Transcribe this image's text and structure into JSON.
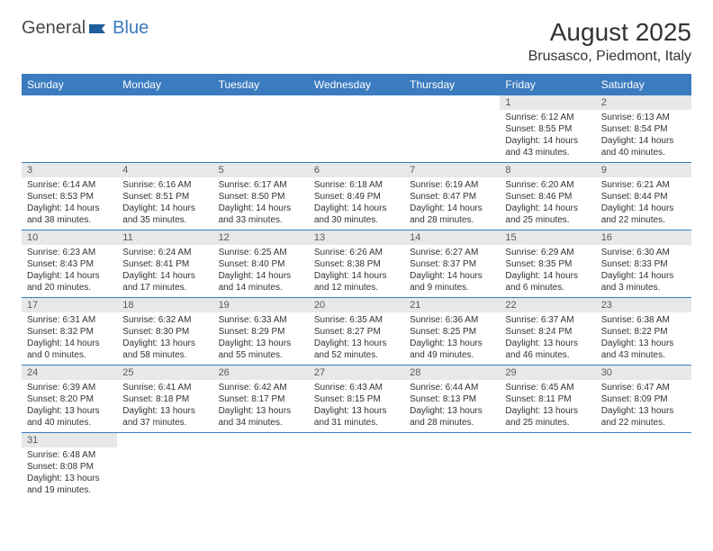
{
  "logo": {
    "text1": "General",
    "text2": "Blue"
  },
  "title": "August 2025",
  "location": "Brusasco, Piedmont, Italy",
  "colors": {
    "header_bg": "#3b7bbf",
    "header_text": "#ffffff",
    "daynum_bg": "#e8e8e8",
    "daynum_text": "#5a5a5a",
    "body_text": "#333333",
    "row_border": "#3b7bbf",
    "background": "#ffffff"
  },
  "day_headers": [
    "Sunday",
    "Monday",
    "Tuesday",
    "Wednesday",
    "Thursday",
    "Friday",
    "Saturday"
  ],
  "weeks": [
    [
      null,
      null,
      null,
      null,
      null,
      {
        "num": "1",
        "sunrise": "6:12 AM",
        "sunset": "8:55 PM",
        "daylight_h": "14",
        "daylight_m": "43"
      },
      {
        "num": "2",
        "sunrise": "6:13 AM",
        "sunset": "8:54 PM",
        "daylight_h": "14",
        "daylight_m": "40"
      }
    ],
    [
      {
        "num": "3",
        "sunrise": "6:14 AM",
        "sunset": "8:53 PM",
        "daylight_h": "14",
        "daylight_m": "38"
      },
      {
        "num": "4",
        "sunrise": "6:16 AM",
        "sunset": "8:51 PM",
        "daylight_h": "14",
        "daylight_m": "35"
      },
      {
        "num": "5",
        "sunrise": "6:17 AM",
        "sunset": "8:50 PM",
        "daylight_h": "14",
        "daylight_m": "33"
      },
      {
        "num": "6",
        "sunrise": "6:18 AM",
        "sunset": "8:49 PM",
        "daylight_h": "14",
        "daylight_m": "30"
      },
      {
        "num": "7",
        "sunrise": "6:19 AM",
        "sunset": "8:47 PM",
        "daylight_h": "14",
        "daylight_m": "28"
      },
      {
        "num": "8",
        "sunrise": "6:20 AM",
        "sunset": "8:46 PM",
        "daylight_h": "14",
        "daylight_m": "25"
      },
      {
        "num": "9",
        "sunrise": "6:21 AM",
        "sunset": "8:44 PM",
        "daylight_h": "14",
        "daylight_m": "22"
      }
    ],
    [
      {
        "num": "10",
        "sunrise": "6:23 AM",
        "sunset": "8:43 PM",
        "daylight_h": "14",
        "daylight_m": "20"
      },
      {
        "num": "11",
        "sunrise": "6:24 AM",
        "sunset": "8:41 PM",
        "daylight_h": "14",
        "daylight_m": "17"
      },
      {
        "num": "12",
        "sunrise": "6:25 AM",
        "sunset": "8:40 PM",
        "daylight_h": "14",
        "daylight_m": "14"
      },
      {
        "num": "13",
        "sunrise": "6:26 AM",
        "sunset": "8:38 PM",
        "daylight_h": "14",
        "daylight_m": "12"
      },
      {
        "num": "14",
        "sunrise": "6:27 AM",
        "sunset": "8:37 PM",
        "daylight_h": "14",
        "daylight_m": "9"
      },
      {
        "num": "15",
        "sunrise": "6:29 AM",
        "sunset": "8:35 PM",
        "daylight_h": "14",
        "daylight_m": "6"
      },
      {
        "num": "16",
        "sunrise": "6:30 AM",
        "sunset": "8:33 PM",
        "daylight_h": "14",
        "daylight_m": "3"
      }
    ],
    [
      {
        "num": "17",
        "sunrise": "6:31 AM",
        "sunset": "8:32 PM",
        "daylight_h": "14",
        "daylight_m": "0"
      },
      {
        "num": "18",
        "sunrise": "6:32 AM",
        "sunset": "8:30 PM",
        "daylight_h": "13",
        "daylight_m": "58"
      },
      {
        "num": "19",
        "sunrise": "6:33 AM",
        "sunset": "8:29 PM",
        "daylight_h": "13",
        "daylight_m": "55"
      },
      {
        "num": "20",
        "sunrise": "6:35 AM",
        "sunset": "8:27 PM",
        "daylight_h": "13",
        "daylight_m": "52"
      },
      {
        "num": "21",
        "sunrise": "6:36 AM",
        "sunset": "8:25 PM",
        "daylight_h": "13",
        "daylight_m": "49"
      },
      {
        "num": "22",
        "sunrise": "6:37 AM",
        "sunset": "8:24 PM",
        "daylight_h": "13",
        "daylight_m": "46"
      },
      {
        "num": "23",
        "sunrise": "6:38 AM",
        "sunset": "8:22 PM",
        "daylight_h": "13",
        "daylight_m": "43"
      }
    ],
    [
      {
        "num": "24",
        "sunrise": "6:39 AM",
        "sunset": "8:20 PM",
        "daylight_h": "13",
        "daylight_m": "40"
      },
      {
        "num": "25",
        "sunrise": "6:41 AM",
        "sunset": "8:18 PM",
        "daylight_h": "13",
        "daylight_m": "37"
      },
      {
        "num": "26",
        "sunrise": "6:42 AM",
        "sunset": "8:17 PM",
        "daylight_h": "13",
        "daylight_m": "34"
      },
      {
        "num": "27",
        "sunrise": "6:43 AM",
        "sunset": "8:15 PM",
        "daylight_h": "13",
        "daylight_m": "31"
      },
      {
        "num": "28",
        "sunrise": "6:44 AM",
        "sunset": "8:13 PM",
        "daylight_h": "13",
        "daylight_m": "28"
      },
      {
        "num": "29",
        "sunrise": "6:45 AM",
        "sunset": "8:11 PM",
        "daylight_h": "13",
        "daylight_m": "25"
      },
      {
        "num": "30",
        "sunrise": "6:47 AM",
        "sunset": "8:09 PM",
        "daylight_h": "13",
        "daylight_m": "22"
      }
    ],
    [
      {
        "num": "31",
        "sunrise": "6:48 AM",
        "sunset": "8:08 PM",
        "daylight_h": "13",
        "daylight_m": "19"
      },
      null,
      null,
      null,
      null,
      null,
      null
    ]
  ],
  "labels": {
    "sunrise": "Sunrise:",
    "sunset": "Sunset:",
    "daylight_prefix": "Daylight:",
    "hours_word": "hours",
    "and_word": "and",
    "minutes_word": "minutes."
  }
}
